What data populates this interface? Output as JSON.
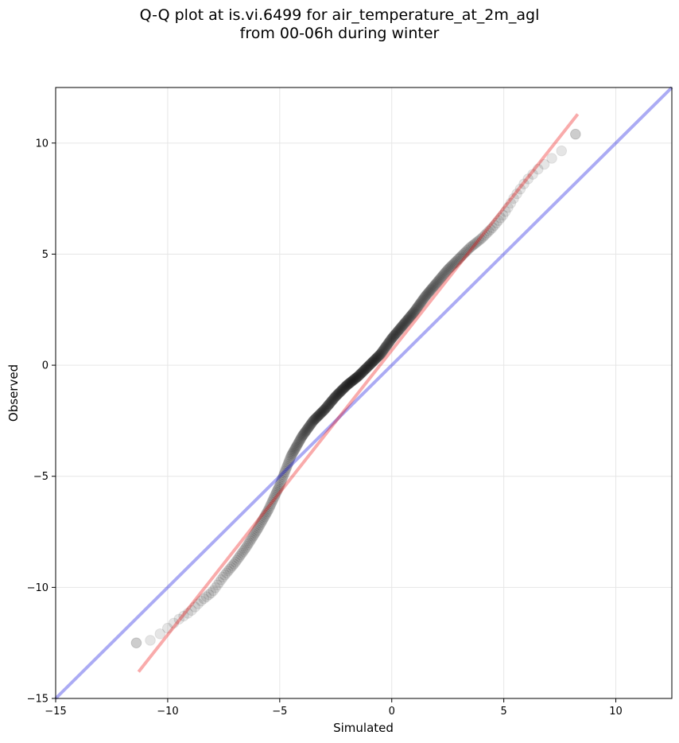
{
  "chart_data": {
    "type": "scatter",
    "title_line1": "Q-Q plot at is.vi.6499 for air_temperature_at_2m_agl",
    "title_line2": "from 00-06h during winter",
    "xlabel": "Simulated",
    "ylabel": "Observed",
    "xlim": [
      -15,
      12.5
    ],
    "ylim": [
      -15,
      12.5
    ],
    "xticks": [
      -15,
      -10,
      -5,
      0,
      5,
      10
    ],
    "yticks": [
      -15,
      -10,
      -5,
      0,
      5,
      10
    ],
    "xtick_labels": [
      "−15",
      "−10",
      "−5",
      "0",
      "5",
      "10"
    ],
    "ytick_labels": [
      "−15",
      "−10",
      "−5",
      "0",
      "5",
      "10"
    ],
    "grid": true,
    "colors": {
      "points": "#000000",
      "identity_line": "#0000dd",
      "fit_line": "#ee0000",
      "grid": "#e6e6e6"
    },
    "identity_line": {
      "x": [
        -15,
        12.5
      ],
      "y": [
        -15,
        12.5
      ]
    },
    "fit_line": {
      "x": [
        -11.3,
        8.3
      ],
      "y": [
        -13.8,
        11.3
      ]
    },
    "quantile_anchors": {
      "x": [
        -11.4,
        -10.8,
        -10.2,
        -9.6,
        -9.0,
        -8.5,
        -8.0,
        -7.5,
        -7.0,
        -6.5,
        -6.0,
        -5.5,
        -5.0,
        -4.5,
        -4.0,
        -3.5,
        -3.0,
        -2.5,
        -2.0,
        -1.5,
        -1.0,
        -0.5,
        0.0,
        0.5,
        1.0,
        1.5,
        2.0,
        2.5,
        3.0,
        3.5,
        4.0,
        4.5,
        5.0,
        5.5,
        6.0,
        6.5,
        7.0,
        7.5,
        8.0,
        8.2
      ],
      "y": [
        -12.5,
        -12.4,
        -12.0,
        -11.5,
        -11.1,
        -10.6,
        -10.2,
        -9.5,
        -8.9,
        -8.2,
        -7.4,
        -6.5,
        -5.4,
        -4.1,
        -3.2,
        -2.5,
        -2.0,
        -1.4,
        -0.9,
        -0.5,
        0.0,
        0.5,
        1.2,
        1.8,
        2.4,
        3.1,
        3.7,
        4.3,
        4.8,
        5.3,
        5.7,
        6.2,
        6.8,
        7.6,
        8.3,
        8.8,
        9.2,
        9.6,
        9.9,
        10.4
      ]
    },
    "point_count": 440
  }
}
